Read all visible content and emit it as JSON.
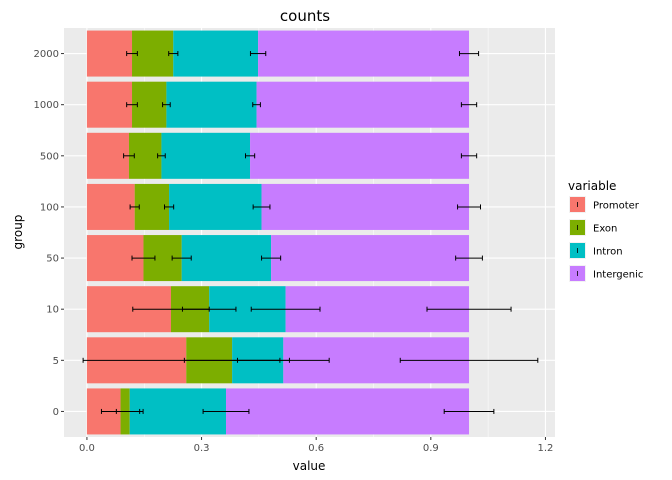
{
  "chart_data": {
    "type": "bar",
    "orientation": "horizontal",
    "stacked": true,
    "title": "counts",
    "xlabel": "value",
    "ylabel": "group",
    "xlim": [
      -0.06,
      1.225
    ],
    "xticks": [
      "0.0",
      "0.3",
      "0.6",
      "0.9",
      "1.2"
    ],
    "xtick_values": [
      0,
      0.3,
      0.6,
      0.9,
      1.2
    ],
    "grid": true,
    "legend": {
      "title": "variable",
      "position": "right"
    },
    "categories": [
      "0",
      "5",
      "10",
      "50",
      "100",
      "500",
      "1000",
      "2000"
    ],
    "series": [
      {
        "name": "Promoter",
        "color": "#F8766D",
        "values": [
          0.088,
          0.26,
          0.22,
          0.148,
          0.125,
          0.11,
          0.118,
          0.118
        ],
        "error": [
          0.05,
          0.27,
          0.1,
          0.03,
          0.012,
          0.014,
          0.014,
          0.014
        ]
      },
      {
        "name": "Exon",
        "color": "#7CAE00",
        "values": [
          0.024,
          0.12,
          0.1,
          0.1,
          0.09,
          0.085,
          0.09,
          0.108
        ],
        "error": [
          0.035,
          0.125,
          0.07,
          0.025,
          0.012,
          0.01,
          0.01,
          0.012
        ]
      },
      {
        "name": "Intron",
        "color": "#00BFC4",
        "values": [
          0.252,
          0.134,
          0.2,
          0.234,
          0.242,
          0.232,
          0.236,
          0.222
        ],
        "error": [
          0.06,
          0.12,
          0.09,
          0.025,
          0.022,
          0.012,
          0.01,
          0.02
        ]
      },
      {
        "name": "Intergenic",
        "color": "#C77CFF",
        "values": [
          0.636,
          0.486,
          0.48,
          0.518,
          0.543,
          0.573,
          0.556,
          0.552
        ],
        "error": [
          0.065,
          0.18,
          0.11,
          0.035,
          0.03,
          0.02,
          0.02,
          0.025
        ]
      }
    ]
  }
}
